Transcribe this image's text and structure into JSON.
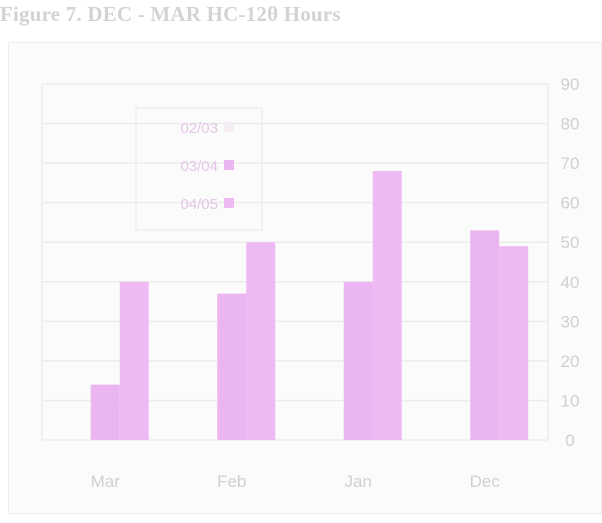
{
  "page": {
    "title": "Figure 7. DEC - MAR HC-12θ Hours"
  },
  "chart_data": {
    "type": "bar",
    "title": "Figure 7. DEC - MAR HC-12θ Hours",
    "categories": [
      "Mar",
      "Feb",
      "Jan",
      "Dec"
    ],
    "series": [
      {
        "name": "02/03",
        "color": "#f4eef4",
        "values": [
          0,
          0,
          0,
          0
        ]
      },
      {
        "name": "03/04",
        "color": "#eab5f1",
        "values": [
          14,
          37,
          40,
          53
        ]
      },
      {
        "name": "04/05",
        "color": "#efb9f4",
        "values": [
          40,
          50,
          68,
          49
        ]
      }
    ],
    "yticks": [
      0,
      10,
      20,
      30,
      40,
      50,
      60,
      70,
      80,
      90
    ],
    "ylim": [
      0,
      90
    ],
    "grid": true,
    "legend": "top-left",
    "y_axis_side": "right"
  }
}
